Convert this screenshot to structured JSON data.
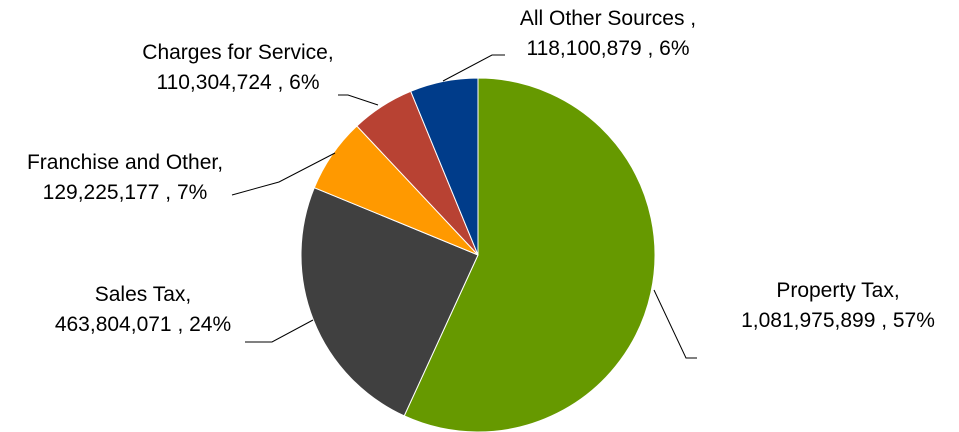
{
  "chart_data": {
    "type": "pie",
    "title": "",
    "series": [
      {
        "values": [
          1081975899,
          463804071,
          129225177,
          110304724,
          118100879
        ]
      }
    ],
    "slices": [
      {
        "name": "Property Tax",
        "value": 1081975899,
        "value_label": "1,081,975,899",
        "percent": "57%",
        "color": "#669900",
        "label_line1": "Property Tax,",
        "label_line2": "1,081,975,899 , 57%"
      },
      {
        "name": "Sales Tax",
        "value": 463804071,
        "value_label": "463,804,071",
        "percent": "24%",
        "color": "#404040",
        "label_line1": "Sales Tax,",
        "label_line2": "463,804,071 , 24%"
      },
      {
        "name": "Franchise and Other",
        "value": 129225177,
        "value_label": "129,225,177",
        "percent": "7%",
        "color": "#FF9900",
        "label_line1": "Franchise and Other,",
        "label_line2": "129,225,177 , 7%"
      },
      {
        "name": "Charges for Service",
        "value": 110304724,
        "value_label": "110,304,724",
        "percent": "6%",
        "color": "#B84233",
        "label_line1": "Charges for Service,",
        "label_line2": "110,304,724 , 6%"
      },
      {
        "name": "All Other Sources",
        "value": 118100879,
        "value_label": "118,100,879",
        "percent": "6%",
        "color": "#003C8A",
        "label_line1": "All Other Sources ,",
        "label_line2": "118,100,879 , 6%"
      }
    ],
    "legend": "none",
    "grid": false
  }
}
